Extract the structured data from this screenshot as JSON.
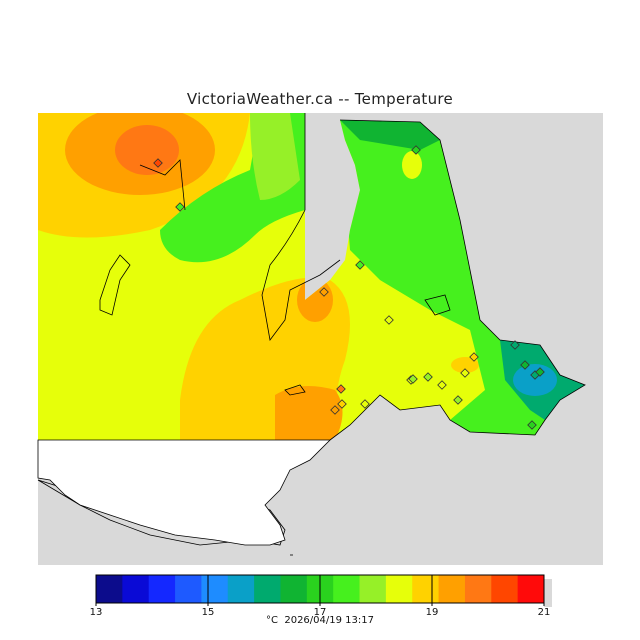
{
  "title": "VictoriaWeather.ca -- Temperature",
  "caption": {
    "unit": "°C",
    "timestamp": "2026/04/19 13:17"
  },
  "legend": {
    "min": 13,
    "max": 21,
    "tick_labels": [
      "13",
      "15",
      "17",
      "19",
      "21"
    ],
    "tick_values": [
      13,
      15,
      17,
      19,
      21
    ],
    "colors": [
      "#0c0c8c",
      "#0a0ad6",
      "#1428ff",
      "#1e5aff",
      "#1e8cff",
      "#0aa0c8",
      "#00aa6e",
      "#10b432",
      "#2ad21e",
      "#46f01e",
      "#96f028",
      "#e6ff0a",
      "#ffd200",
      "#ffa000",
      "#ff7814",
      "#ff4600",
      "#ff0a0a"
    ]
  },
  "stations": [
    {
      "id": 1,
      "temp_c": 20.5
    },
    {
      "id": 2,
      "temp_c": 17.5
    },
    {
      "id": 3,
      "temp_c": 17.0
    },
    {
      "id": 4,
      "temp_c": 17.5
    },
    {
      "id": 5,
      "temp_c": 19.5
    },
    {
      "id": 6,
      "temp_c": 18.5
    },
    {
      "id": 7,
      "temp_c": 19.0
    },
    {
      "id": 8,
      "temp_c": 18.5
    },
    {
      "id": 9,
      "temp_c": 18.5
    },
    {
      "id": 10,
      "temp_c": 18.0
    },
    {
      "id": 11,
      "temp_c": 18.5
    },
    {
      "id": 12,
      "temp_c": 18.0
    },
    {
      "id": 13,
      "temp_c": 16.0
    },
    {
      "id": 14,
      "temp_c": 16.5
    },
    {
      "id": 15,
      "temp_c": 16.0
    },
    {
      "id": 16,
      "temp_c": 16.5
    },
    {
      "id": 17,
      "temp_c": 17.0
    },
    {
      "id": 18,
      "temp_c": 20.0
    },
    {
      "id": 19,
      "temp_c": 19.5
    },
    {
      "id": 20,
      "temp_c": 19.0
    },
    {
      "id": 21,
      "temp_c": 18.5
    },
    {
      "id": 22,
      "temp_c": 18.0
    }
  ]
}
